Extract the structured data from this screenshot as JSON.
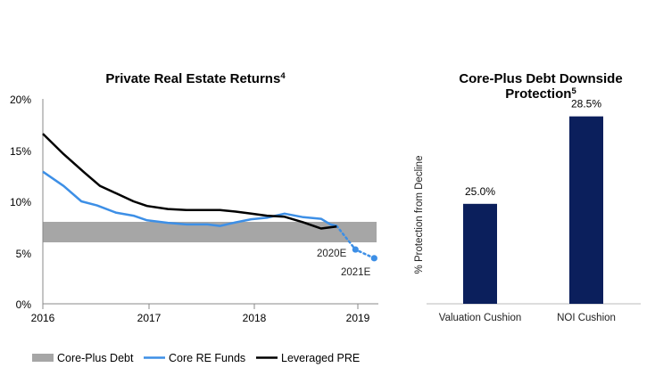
{
  "chart_data": [
    {
      "type": "line",
      "title": "Private Real Estate Returns",
      "title_superscript": "4",
      "ylim": [
        0,
        20
      ],
      "xlim": [
        2016.0,
        2019.22
      ],
      "y_ticks": [
        "0%",
        "5%",
        "10%",
        "15%",
        "20%"
      ],
      "x_ticks": [
        "2016",
        "2017",
        "2018",
        "2019"
      ],
      "band": {
        "name": "Core-Plus Debt",
        "low": 6.0,
        "high": 8.0,
        "color": "#a6a6a6"
      },
      "series": [
        {
          "name": "Core RE Funds",
          "color": "#3d8fe6",
          "points": [
            [
              2016.0,
              12.9
            ],
            [
              2016.2,
              11.5
            ],
            [
              2016.37,
              10.0
            ],
            [
              2016.52,
              9.6
            ],
            [
              2016.7,
              8.9
            ],
            [
              2016.87,
              8.6
            ],
            [
              2017.0,
              8.15
            ],
            [
              2017.2,
              7.9
            ],
            [
              2017.38,
              7.75
            ],
            [
              2017.58,
              7.75
            ],
            [
              2017.7,
              7.6
            ],
            [
              2017.85,
              7.95
            ],
            [
              2018.0,
              8.25
            ],
            [
              2018.15,
              8.4
            ],
            [
              2018.32,
              8.8
            ],
            [
              2018.5,
              8.45
            ],
            [
              2018.67,
              8.3
            ],
            [
              2018.76,
              7.75
            ],
            [
              2018.82,
              7.6
            ]
          ],
          "estimate_points": [
            [
              2018.82,
              7.6
            ],
            [
              2019.0,
              5.3
            ],
            [
              2019.18,
              4.45
            ]
          ],
          "estimate_labels": [
            "2020E",
            "2021E"
          ]
        },
        {
          "name": "Leveraged PRE",
          "color": "#000000",
          "points": [
            [
              2016.0,
              16.6
            ],
            [
              2016.2,
              14.6
            ],
            [
              2016.4,
              12.8
            ],
            [
              2016.55,
              11.5
            ],
            [
              2016.7,
              10.8
            ],
            [
              2016.87,
              10.0
            ],
            [
              2017.0,
              9.55
            ],
            [
              2017.2,
              9.25
            ],
            [
              2017.38,
              9.15
            ],
            [
              2017.58,
              9.15
            ],
            [
              2017.7,
              9.15
            ],
            [
              2017.85,
              9.0
            ],
            [
              2018.0,
              8.8
            ],
            [
              2018.15,
              8.6
            ],
            [
              2018.32,
              8.5
            ],
            [
              2018.5,
              7.95
            ],
            [
              2018.67,
              7.35
            ],
            [
              2018.82,
              7.55
            ]
          ]
        }
      ],
      "legend": [
        "Core-Plus Debt",
        "Core RE Funds",
        "Leveraged PRE"
      ],
      "legend_placement": "bottom"
    },
    {
      "type": "bar",
      "title_line1": "Core-Plus Debt Downside",
      "title_line2": "Protection",
      "title_superscript": "5",
      "ylabel": "% Protection from Decline",
      "categories": [
        "Valuation Cushion",
        "NOI Cushion"
      ],
      "values": [
        25.0,
        28.5
      ],
      "value_labels": [
        "25.0%",
        "28.5%"
      ],
      "ylim": [
        21.0,
        29.2
      ],
      "color": "#0b1f5c"
    }
  ]
}
